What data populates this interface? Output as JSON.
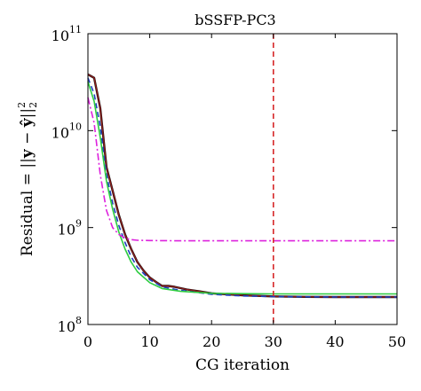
{
  "chart_data": {
    "type": "line",
    "title": "bSSFP-PC3",
    "xlabel": "CG iteration",
    "ylabel": {
      "prefix": "Residual = ",
      "norm_open": "||",
      "y": "y",
      "minus": " − ",
      "yhat": "ŷ",
      "norm_close": "||",
      "sub": "2",
      "sup": "2"
    },
    "xlim": [
      0,
      50
    ],
    "ylim": [
      100000000,
      100000000000
    ],
    "yscale": "log",
    "grid": false,
    "x_ticks": [
      "0",
      "10",
      "20",
      "30",
      "40",
      "50"
    ],
    "x_tick_values": [
      0,
      10,
      20,
      30,
      40,
      50
    ],
    "y_ticks": [
      {
        "base": "10",
        "exp": "8",
        "value": 100000000
      },
      {
        "base": "10",
        "exp": "9",
        "value": 1000000000
      },
      {
        "base": "10",
        "exp": "10",
        "value": 10000000000
      },
      {
        "base": "10",
        "exp": "11",
        "value": 100000000000
      }
    ],
    "vertical_line": {
      "x": 30,
      "color": "#d62728",
      "dash": "dashed"
    },
    "series": [
      {
        "color": "#111111",
        "dash": "solid",
        "width": 2.4,
        "x": [
          0,
          1,
          2,
          3,
          4,
          5,
          6,
          7,
          8,
          9,
          10,
          11,
          12,
          13,
          14,
          16,
          18,
          20,
          25,
          30,
          35,
          40,
          45,
          50
        ],
        "y": [
          38000000000.0,
          35000000000.0,
          17000000000.0,
          4200000000.0,
          2400000000.0,
          1350000000.0,
          850000000.0,
          600000000.0,
          440000000.0,
          360000000.0,
          305000000.0,
          275000000.0,
          250000000.0,
          250000000.0,
          245000000.0,
          230000000.0,
          220000000.0,
          210000000.0,
          200000000.0,
          195000000.0,
          193000000.0,
          192000000.0,
          192000000.0,
          192000000.0
        ]
      },
      {
        "color": "#8b1a1a",
        "dash": "solid",
        "width": 1.4,
        "x": [
          0,
          1,
          2,
          3,
          4,
          5,
          6,
          7,
          8,
          9,
          10,
          11,
          12,
          13,
          14,
          16,
          18,
          20,
          25,
          30,
          35,
          40,
          45,
          50
        ],
        "y": [
          38000000000.0,
          35000000000.0,
          17000000000.0,
          4200000000.0,
          2400000000.0,
          1350000000.0,
          850000000.0,
          600000000.0,
          440000000.0,
          360000000.0,
          305000000.0,
          275000000.0,
          250000000.0,
          250000000.0,
          245000000.0,
          230000000.0,
          220000000.0,
          210000000.0,
          200000000.0,
          195000000.0,
          193000000.0,
          192000000.0,
          192000000.0,
          192000000.0
        ]
      },
      {
        "color": "#1f3fbf",
        "dash": "dashed",
        "width": 1.6,
        "x": [
          0,
          1,
          2,
          3,
          4,
          5,
          6,
          7,
          8,
          10,
          12,
          15,
          20,
          25,
          30,
          40,
          50
        ],
        "y": [
          35000000000.0,
          24000000000.0,
          11000000000.0,
          3500000000.0,
          1800000000.0,
          1050000000.0,
          700000000.0,
          500000000.0,
          390000000.0,
          290000000.0,
          245000000.0,
          225000000.0,
          205000000.0,
          197000000.0,
          194000000.0,
          192000000.0,
          192000000.0
        ]
      },
      {
        "color": "#2ecc40",
        "dash": "solid",
        "width": 1.6,
        "x": [
          0,
          1,
          2,
          3,
          4,
          5,
          6,
          7,
          8,
          10,
          12,
          15,
          20,
          25,
          30,
          40,
          50
        ],
        "y": [
          32000000000.0,
          20000000000.0,
          8500000000.0,
          3000000000.0,
          1550000000.0,
          900000000.0,
          600000000.0,
          440000000.0,
          350000000.0,
          270000000.0,
          235000000.0,
          220000000.0,
          210000000.0,
          208000000.0,
          207000000.0,
          207000000.0,
          207000000.0
        ]
      },
      {
        "color": "#dd22dd",
        "dash": "dashdot",
        "width": 1.6,
        "x": [
          0,
          1,
          2,
          3,
          4,
          5,
          6,
          7,
          8,
          10,
          15,
          20,
          30,
          40,
          50
        ],
        "y": [
          22000000000.0,
          12000000000.0,
          3500000000.0,
          1500000000.0,
          1000000000.0,
          850000000.0,
          780000000.0,
          750000000.0,
          740000000.0,
          735000000.0,
          730000000.0,
          730000000.0,
          730000000.0,
          730000000.0,
          730000000.0
        ]
      }
    ]
  }
}
